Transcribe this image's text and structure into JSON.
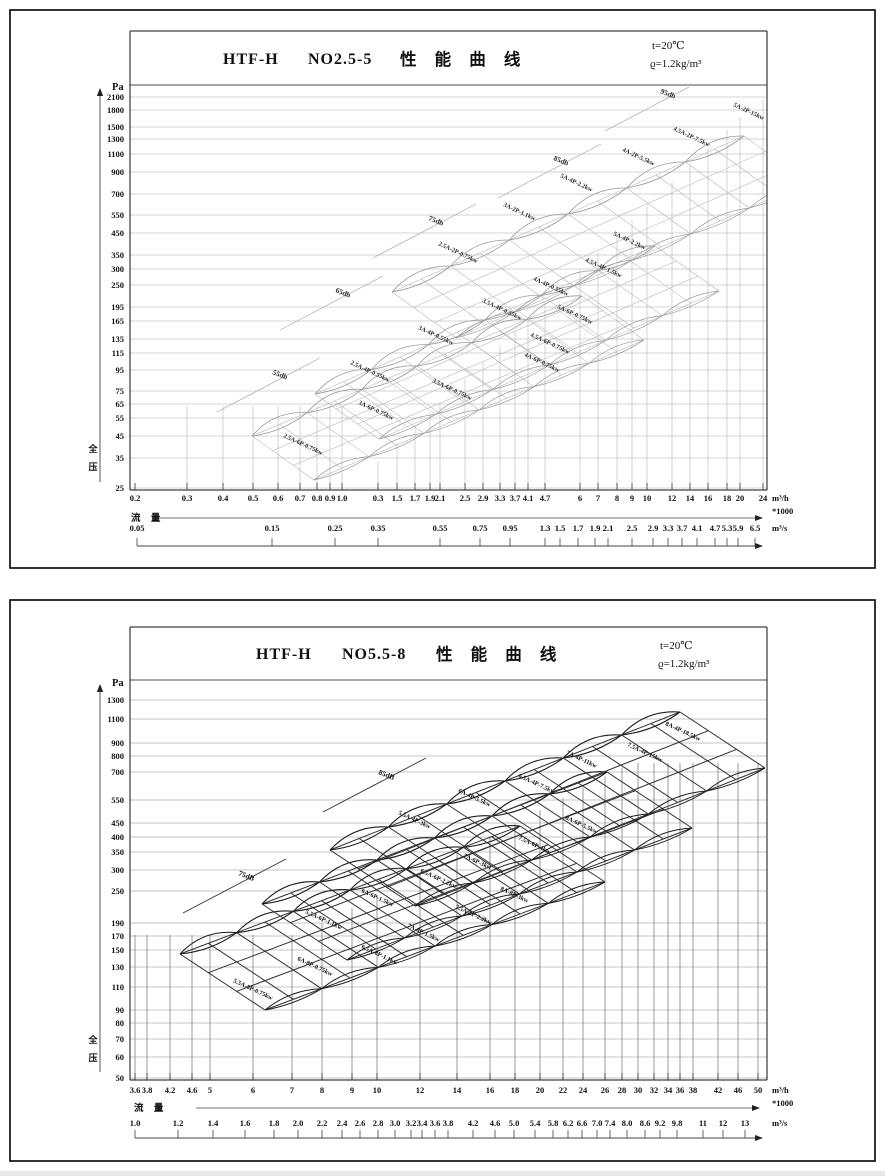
{
  "document": {
    "background": "#ffffff",
    "ink": "#111111"
  },
  "chart_data": [
    {
      "type": "line",
      "brand": "HTF-H",
      "model": "NO2.5-5",
      "title": "性 能 曲 线",
      "conditions": [
        "t=20℃",
        "ϱ=1.2kg/m³"
      ],
      "pressure_unit": "Pa",
      "pressure_axis_label": "全压",
      "flow_axis_label": "流 量",
      "flow_units": {
        "primary": "m³/h",
        "primary_scale": "*1000",
        "secondary": "m³/s"
      },
      "y_ticks": [
        "2100",
        "1800",
        "1500",
        "1300",
        "1100",
        "900",
        "700",
        "550",
        "450",
        "350",
        "300",
        "250",
        "195",
        "165",
        "135",
        "115",
        "95",
        "75",
        "65",
        "55",
        "45",
        "35",
        "25"
      ],
      "x_ticks_m3h": [
        "0.2",
        "0.3",
        "0.4",
        "0.5",
        "0.6",
        "0.7",
        "0.8",
        "0.9",
        "1.0",
        "0.3",
        "1.5",
        "1.7",
        "1.9",
        "2.1",
        "2.5",
        "2.9",
        "3.3",
        "3.7",
        "4.1",
        "4.7",
        "6",
        "7",
        "8",
        "9",
        "10",
        "12",
        "14",
        "16",
        "18",
        "20",
        "24"
      ],
      "x_ticks_m3s": [
        "0.05",
        "0.15",
        "0.25",
        "0.35",
        "0.55",
        "0.75",
        "0.95",
        "1.3",
        "1.5",
        "1.7",
        "1.9",
        "2.1",
        "2.5",
        "2.9",
        "3.3",
        "3.7",
        "4.1",
        "4.7",
        "5.3",
        "5.9",
        "6.5"
      ],
      "noise_labels": [
        "55db",
        "65db",
        "75db",
        "85db",
        "95db"
      ],
      "curve_labels": [
        "2.5A-6P-0.75kw",
        "3A-6P-0.75kw",
        "3.5A-6P-0.75kw",
        "4A-6P-0.75kw",
        "4.5A-6P-0.75kw",
        "5A-6P-0.75kw",
        "2.5A-4P-0.55kw",
        "3A-4P-0.55kw",
        "3.5A-4P-0.55kw",
        "4A-4P-0.55kw",
        "4.5A-4P-1.5kw",
        "5A-4P-2.2kw",
        "2.5A-2P-0.75kw",
        "3A-2P-1.1kw",
        "5A-4P-2.2kw",
        "4A-2P-5.5kw",
        "4.5A-2P-7.5kw",
        "5A-2P-15kw"
      ]
    },
    {
      "type": "line",
      "brand": "HTF-H",
      "model": "NO5.5-8",
      "title": "性 能 曲 线",
      "conditions": [
        "t=20℃",
        "ϱ=1.2kg/m³"
      ],
      "pressure_unit": "Pa",
      "pressure_axis_label": "全压",
      "flow_axis_label": "流 量",
      "flow_units": {
        "primary": "m³/h",
        "primary_scale": "*1000",
        "secondary": "m³/s"
      },
      "y_ticks": [
        "1300",
        "1100",
        "900",
        "800",
        "700",
        "550",
        "450",
        "400",
        "350",
        "300",
        "250",
        "190",
        "170",
        "150",
        "130",
        "110",
        "90",
        "80",
        "70",
        "60",
        "50"
      ],
      "x_ticks_m3h": [
        "3.6",
        "3.8",
        "4.2",
        "4.6",
        "5",
        "6",
        "7",
        "8",
        "9",
        "10",
        "12",
        "14",
        "16",
        "18",
        "20",
        "22",
        "24",
        "26",
        "28",
        "30",
        "32",
        "34",
        "36",
        "38",
        "42",
        "46",
        "50"
      ],
      "x_ticks_m3s": [
        "1.0",
        "1.2",
        "1.4",
        "1.6",
        "1.8",
        "2.0",
        "2.2",
        "2.4",
        "2.6",
        "2.8",
        "3.0",
        "3.2",
        "3.4",
        "3.6",
        "3.8",
        "4.2",
        "4.6",
        "5.0",
        "5.4",
        "5.8",
        "6.2",
        "6.6",
        "7.0",
        "7.4",
        "8.0",
        "8.6",
        "9.2",
        "9.8",
        "11",
        "12",
        "13"
      ],
      "noise_labels": [
        "75dB",
        "85dB"
      ],
      "curve_labels": [
        "5.5A-8P-0.75kw",
        "6A-8P-0.75kw",
        "6.5A-8P-1.1kw",
        "7A-8P-1.5kw",
        "7.5A-8P-2.2kw",
        "8A-8P-3kw",
        "5.5A-6P-1.1kw",
        "6A-6P-1.5kw",
        "6.5A-6P-2.2kw",
        "7A-6P-3kw",
        "7.5A-6P-4kw",
        "8A-6P-5.5kw",
        "5.5A-4P-3kw",
        "6A-4P-5.5kw",
        "6.5A-4P-7.5kw",
        "7A-4P-11kw",
        "7.5A-4P-15kw",
        "8A-4P-18.5kw"
      ]
    }
  ]
}
